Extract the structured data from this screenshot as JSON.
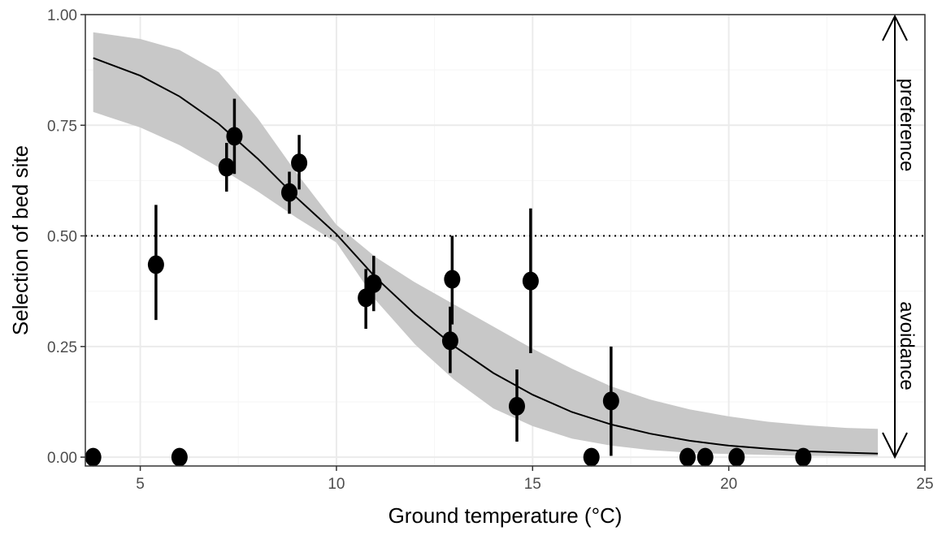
{
  "chart_data": {
    "type": "scatter",
    "xlabel": "Ground temperature (°C)",
    "ylabel": "Selection of bed site",
    "xlim": [
      3.6,
      25
    ],
    "ylim": [
      -0.02,
      1.0
    ],
    "x_ticks": [
      5,
      10,
      15,
      20,
      25
    ],
    "x_tick_labels": [
      "5",
      "10",
      "15",
      "20",
      "25"
    ],
    "y_ticks": [
      0,
      0.25,
      0.5,
      0.75,
      1.0
    ],
    "y_tick_labels": [
      "0.00",
      "0.25",
      "0.50",
      "0.75",
      "1.00"
    ],
    "grid": true,
    "reference_line": {
      "y": 0.5,
      "style": "dotted"
    },
    "points": [
      {
        "x": 3.8,
        "y": 0.0,
        "ymin": null,
        "ymax": null
      },
      {
        "x": 5.4,
        "y": 0.435,
        "ymin": 0.31,
        "ymax": 0.57
      },
      {
        "x": 6.0,
        "y": 0.0,
        "ymin": null,
        "ymax": null
      },
      {
        "x": 7.2,
        "y": 0.655,
        "ymin": 0.6,
        "ymax": 0.71
      },
      {
        "x": 7.4,
        "y": 0.725,
        "ymin": 0.64,
        "ymax": 0.81
      },
      {
        "x": 8.8,
        "y": 0.598,
        "ymin": 0.55,
        "ymax": 0.645
      },
      {
        "x": 9.05,
        "y": 0.665,
        "ymin": 0.605,
        "ymax": 0.728
      },
      {
        "x": 10.75,
        "y": 0.36,
        "ymin": 0.29,
        "ymax": 0.425
      },
      {
        "x": 10.95,
        "y": 0.392,
        "ymin": 0.33,
        "ymax": 0.455
      },
      {
        "x": 12.9,
        "y": 0.263,
        "ymin": 0.19,
        "ymax": 0.34
      },
      {
        "x": 12.95,
        "y": 0.402,
        "ymin": 0.3,
        "ymax": 0.5
      },
      {
        "x": 14.6,
        "y": 0.115,
        "ymin": 0.035,
        "ymax": 0.198
      },
      {
        "x": 14.95,
        "y": 0.398,
        "ymin": 0.235,
        "ymax": 0.562
      },
      {
        "x": 16.5,
        "y": 0.0,
        "ymin": null,
        "ymax": null
      },
      {
        "x": 17.0,
        "y": 0.127,
        "ymin": 0.003,
        "ymax": 0.25
      },
      {
        "x": 18.95,
        "y": 0.0,
        "ymin": null,
        "ymax": null
      },
      {
        "x": 19.4,
        "y": 0.0,
        "ymin": null,
        "ymax": null
      },
      {
        "x": 20.2,
        "y": 0.0,
        "ymin": null,
        "ymax": null
      },
      {
        "x": 21.9,
        "y": 0.0,
        "ymin": null,
        "ymax": null
      }
    ],
    "fit_curve": {
      "x": [
        3.8,
        5,
        6,
        7,
        8,
        9,
        10,
        11,
        12,
        13,
        14,
        15,
        16,
        17,
        18,
        19,
        20,
        21,
        22,
        23,
        23.8
      ],
      "y": [
        0.902,
        0.862,
        0.815,
        0.753,
        0.674,
        0.585,
        0.504,
        0.406,
        0.323,
        0.251,
        0.19,
        0.141,
        0.102,
        0.074,
        0.053,
        0.037,
        0.026,
        0.019,
        0.013,
        0.01,
        0.008
      ],
      "lower": [
        0.78,
        0.745,
        0.705,
        0.655,
        0.6,
        0.54,
        0.485,
        0.355,
        0.255,
        0.175,
        0.11,
        0.07,
        0.042,
        0.026,
        0.016,
        0.01,
        0.007,
        0.005,
        0.003,
        0.002,
        0.002
      ],
      "upper": [
        0.96,
        0.945,
        0.92,
        0.87,
        0.765,
        0.64,
        0.525,
        0.452,
        0.395,
        0.345,
        0.295,
        0.245,
        0.2,
        0.16,
        0.13,
        0.108,
        0.092,
        0.08,
        0.072,
        0.066,
        0.064
      ]
    },
    "annotations": [
      {
        "text": "preference",
        "direction": "up"
      },
      {
        "text": "avoidance",
        "direction": "down"
      }
    ],
    "colors": {
      "points": "#000000",
      "band": "#c8c8c8",
      "curve": "#000000",
      "grid_major": "#ebebeb",
      "grid_minor": "#f5f5f5",
      "panel_border": "#333333",
      "tick_text": "#4d4d4d"
    }
  }
}
